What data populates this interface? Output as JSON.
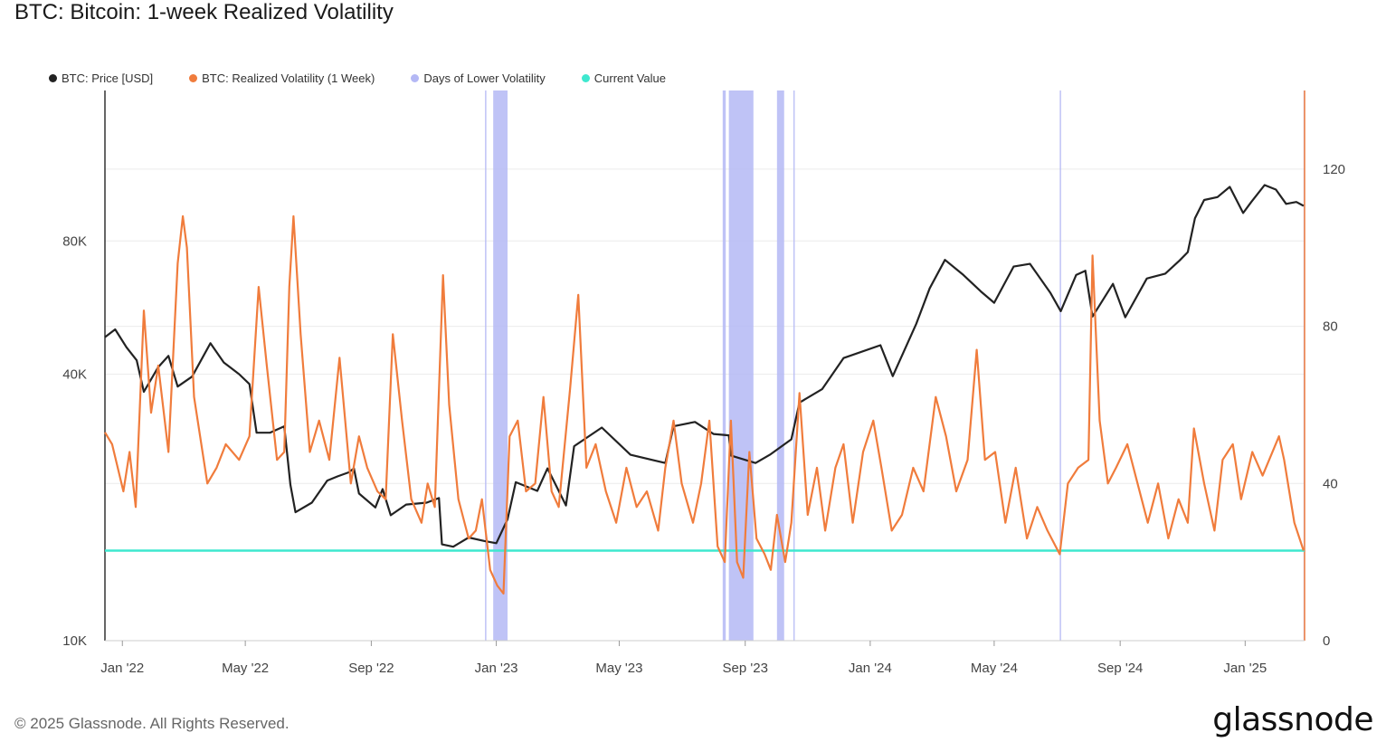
{
  "title": "BTC: Bitcoin: 1-week Realized Volatility",
  "legend": [
    {
      "label": "BTC: Price [USD]",
      "color": "#222222"
    },
    {
      "label": "BTC: Realized Volatility (1 Week)",
      "color": "#f07c3c"
    },
    {
      "label": "Days of Lower Volatility",
      "color": "#b4b8f5"
    },
    {
      "label": "Current Value",
      "color": "#3ee8cf"
    }
  ],
  "footer": {
    "copyright": "© 2025 Glassnode. All Rights Reserved.",
    "brand": "glassnode"
  },
  "chart_data": {
    "type": "line",
    "title": "BTC: Bitcoin: 1-week Realized Volatility",
    "x_range": [
      "2021-12-15",
      "2025-02-28"
    ],
    "x_ticks": [
      {
        "date": "2022-01-01",
        "label": "Jan '22"
      },
      {
        "date": "2022-05-01",
        "label": "May '22"
      },
      {
        "date": "2022-09-01",
        "label": "Sep '22"
      },
      {
        "date": "2023-01-01",
        "label": "Jan '23"
      },
      {
        "date": "2023-05-01",
        "label": "May '23"
      },
      {
        "date": "2023-09-01",
        "label": "Sep '23"
      },
      {
        "date": "2024-01-01",
        "label": "Jan '24"
      },
      {
        "date": "2024-05-01",
        "label": "May '24"
      },
      {
        "date": "2024-09-01",
        "label": "Sep '24"
      },
      {
        "date": "2025-01-01",
        "label": "Jan '25"
      }
    ],
    "y_left": {
      "scale": "log",
      "ticks": [
        {
          "value": 10000,
          "label": "10K"
        },
        {
          "value": 40000,
          "label": "40K"
        },
        {
          "value": 80000,
          "label": "80K"
        }
      ],
      "range": [
        10000,
        175000
      ]
    },
    "y_right": {
      "scale": "linear",
      "ticks": [
        {
          "value": 0,
          "label": "0"
        },
        {
          "value": 40,
          "label": "40"
        },
        {
          "value": 80,
          "label": "80"
        },
        {
          "value": 120,
          "label": "120"
        }
      ],
      "range": [
        0,
        140
      ]
    },
    "current_value": 22.9,
    "series": [
      {
        "name": "BTC: Price [USD]",
        "axis": "left",
        "color": "#222222",
        "points": [
          [
            "2021-12-15",
            48500
          ],
          [
            "2021-12-25",
            50500
          ],
          [
            "2022-01-05",
            46000
          ],
          [
            "2022-01-15",
            43000
          ],
          [
            "2022-01-22",
            36500
          ],
          [
            "2022-02-05",
            41500
          ],
          [
            "2022-02-15",
            44000
          ],
          [
            "2022-02-24",
            37500
          ],
          [
            "2022-03-10",
            39500
          ],
          [
            "2022-03-28",
            47000
          ],
          [
            "2022-04-10",
            42500
          ],
          [
            "2022-04-25",
            40000
          ],
          [
            "2022-05-05",
            38000
          ],
          [
            "2022-05-12",
            29500
          ],
          [
            "2022-05-25",
            29500
          ],
          [
            "2022-06-08",
            30500
          ],
          [
            "2022-06-14",
            22500
          ],
          [
            "2022-06-19",
            19500
          ],
          [
            "2022-07-05",
            20500
          ],
          [
            "2022-07-20",
            23000
          ],
          [
            "2022-07-30",
            23500
          ],
          [
            "2022-08-10",
            24000
          ],
          [
            "2022-08-15",
            24500
          ],
          [
            "2022-08-20",
            21500
          ],
          [
            "2022-09-05",
            20000
          ],
          [
            "2022-09-12",
            22000
          ],
          [
            "2022-09-20",
            19200
          ],
          [
            "2022-10-05",
            20300
          ],
          [
            "2022-10-25",
            20500
          ],
          [
            "2022-11-06",
            21000
          ],
          [
            "2022-11-09",
            16500
          ],
          [
            "2022-11-20",
            16300
          ],
          [
            "2022-12-05",
            17100
          ],
          [
            "2022-12-20",
            16800
          ],
          [
            "2023-01-01",
            16600
          ],
          [
            "2023-01-12",
            18800
          ],
          [
            "2023-01-20",
            22800
          ],
          [
            "2023-02-10",
            21800
          ],
          [
            "2023-02-20",
            24500
          ],
          [
            "2023-03-10",
            20200
          ],
          [
            "2023-03-18",
            27500
          ],
          [
            "2023-04-14",
            30300
          ],
          [
            "2023-05-12",
            26300
          ],
          [
            "2023-06-15",
            25200
          ],
          [
            "2023-06-23",
            30500
          ],
          [
            "2023-07-14",
            31200
          ],
          [
            "2023-08-01",
            29300
          ],
          [
            "2023-08-16",
            29100
          ],
          [
            "2023-08-18",
            26200
          ],
          [
            "2023-09-11",
            25200
          ],
          [
            "2023-09-25",
            26300
          ],
          [
            "2023-10-16",
            28500
          ],
          [
            "2023-10-24",
            34500
          ],
          [
            "2023-11-15",
            37000
          ],
          [
            "2023-12-06",
            43500
          ],
          [
            "2024-01-11",
            46500
          ],
          [
            "2024-01-23",
            39600
          ],
          [
            "2024-02-15",
            52000
          ],
          [
            "2024-02-28",
            62500
          ],
          [
            "2024-03-14",
            72500
          ],
          [
            "2024-04-01",
            67000
          ],
          [
            "2024-04-18",
            61500
          ],
          [
            "2024-05-01",
            58000
          ],
          [
            "2024-05-20",
            70000
          ],
          [
            "2024-06-05",
            71000
          ],
          [
            "2024-06-25",
            61000
          ],
          [
            "2024-07-05",
            55500
          ],
          [
            "2024-07-20",
            67000
          ],
          [
            "2024-07-29",
            68500
          ],
          [
            "2024-08-05",
            54000
          ],
          [
            "2024-08-25",
            64000
          ],
          [
            "2024-09-06",
            53800
          ],
          [
            "2024-09-27",
            65800
          ],
          [
            "2024-10-15",
            67500
          ],
          [
            "2024-10-29",
            72300
          ],
          [
            "2024-11-06",
            75500
          ],
          [
            "2024-11-13",
            90000
          ],
          [
            "2024-11-22",
            99000
          ],
          [
            "2024-12-05",
            100500
          ],
          [
            "2024-12-17",
            106000
          ],
          [
            "2024-12-30",
            92500
          ],
          [
            "2025-01-07",
            98000
          ],
          [
            "2025-01-20",
            107000
          ],
          [
            "2025-01-31",
            104500
          ],
          [
            "2025-02-10",
            97000
          ],
          [
            "2025-02-20",
            98000
          ],
          [
            "2025-02-27",
            96000
          ]
        ]
      },
      {
        "name": "BTC: Realized Volatility (1 Week)",
        "axis": "right",
        "color": "#f07c3c",
        "points": [
          [
            "2021-12-15",
            53
          ],
          [
            "2021-12-22",
            50
          ],
          [
            "2022-01-02",
            38
          ],
          [
            "2022-01-08",
            48
          ],
          [
            "2022-01-14",
            34
          ],
          [
            "2022-01-22",
            84
          ],
          [
            "2022-01-29",
            58
          ],
          [
            "2022-02-05",
            70
          ],
          [
            "2022-02-15",
            48
          ],
          [
            "2022-02-24",
            96
          ],
          [
            "2022-03-01",
            108
          ],
          [
            "2022-03-05",
            100
          ],
          [
            "2022-03-12",
            62
          ],
          [
            "2022-03-25",
            40
          ],
          [
            "2022-04-03",
            44
          ],
          [
            "2022-04-12",
            50
          ],
          [
            "2022-04-25",
            46
          ],
          [
            "2022-05-05",
            52
          ],
          [
            "2022-05-14",
            90
          ],
          [
            "2022-05-22",
            70
          ],
          [
            "2022-06-01",
            46
          ],
          [
            "2022-06-08",
            48
          ],
          [
            "2022-06-13",
            90
          ],
          [
            "2022-06-17",
            108
          ],
          [
            "2022-06-24",
            78
          ],
          [
            "2022-07-03",
            48
          ],
          [
            "2022-07-12",
            56
          ],
          [
            "2022-07-22",
            46
          ],
          [
            "2022-08-01",
            72
          ],
          [
            "2022-08-12",
            40
          ],
          [
            "2022-08-20",
            52
          ],
          [
            "2022-08-28",
            44
          ],
          [
            "2022-09-07",
            38
          ],
          [
            "2022-09-15",
            36
          ],
          [
            "2022-09-22",
            78
          ],
          [
            "2022-10-01",
            56
          ],
          [
            "2022-10-10",
            36
          ],
          [
            "2022-10-20",
            30
          ],
          [
            "2022-10-26",
            40
          ],
          [
            "2022-11-02",
            34
          ],
          [
            "2022-11-10",
            93
          ],
          [
            "2022-11-16",
            60
          ],
          [
            "2022-11-25",
            36
          ],
          [
            "2022-12-05",
            26
          ],
          [
            "2022-12-12",
            28
          ],
          [
            "2022-12-18",
            36
          ],
          [
            "2022-12-26",
            18
          ],
          [
            "2023-01-02",
            14
          ],
          [
            "2023-01-08",
            12
          ],
          [
            "2023-01-14",
            52
          ],
          [
            "2023-01-22",
            56
          ],
          [
            "2023-01-30",
            38
          ],
          [
            "2023-02-08",
            40
          ],
          [
            "2023-02-16",
            62
          ],
          [
            "2023-02-24",
            38
          ],
          [
            "2023-03-03",
            34
          ],
          [
            "2023-03-14",
            64
          ],
          [
            "2023-03-22",
            88
          ],
          [
            "2023-03-30",
            44
          ],
          [
            "2023-04-08",
            50
          ],
          [
            "2023-04-18",
            38
          ],
          [
            "2023-04-28",
            30
          ],
          [
            "2023-05-08",
            44
          ],
          [
            "2023-05-18",
            34
          ],
          [
            "2023-05-28",
            38
          ],
          [
            "2023-06-08",
            28
          ],
          [
            "2023-06-15",
            44
          ],
          [
            "2023-06-23",
            56
          ],
          [
            "2023-07-01",
            40
          ],
          [
            "2023-07-12",
            30
          ],
          [
            "2023-07-20",
            40
          ],
          [
            "2023-07-28",
            56
          ],
          [
            "2023-08-05",
            24
          ],
          [
            "2023-08-12",
            20
          ],
          [
            "2023-08-18",
            56
          ],
          [
            "2023-08-24",
            20
          ],
          [
            "2023-08-30",
            16
          ],
          [
            "2023-09-05",
            48
          ],
          [
            "2023-09-12",
            26
          ],
          [
            "2023-09-20",
            22
          ],
          [
            "2023-09-26",
            18
          ],
          [
            "2023-10-02",
            32
          ],
          [
            "2023-10-10",
            20
          ],
          [
            "2023-10-16",
            30
          ],
          [
            "2023-10-24",
            63
          ],
          [
            "2023-11-01",
            32
          ],
          [
            "2023-11-10",
            44
          ],
          [
            "2023-11-18",
            28
          ],
          [
            "2023-11-28",
            44
          ],
          [
            "2023-12-06",
            50
          ],
          [
            "2023-12-15",
            30
          ],
          [
            "2023-12-25",
            48
          ],
          [
            "2024-01-04",
            56
          ],
          [
            "2024-01-12",
            44
          ],
          [
            "2024-01-22",
            28
          ],
          [
            "2024-02-01",
            32
          ],
          [
            "2024-02-12",
            44
          ],
          [
            "2024-02-22",
            38
          ],
          [
            "2024-03-05",
            62
          ],
          [
            "2024-03-15",
            52
          ],
          [
            "2024-03-25",
            38
          ],
          [
            "2024-04-05",
            46
          ],
          [
            "2024-04-14",
            74
          ],
          [
            "2024-04-22",
            46
          ],
          [
            "2024-05-02",
            48
          ],
          [
            "2024-05-12",
            30
          ],
          [
            "2024-05-22",
            44
          ],
          [
            "2024-06-02",
            26
          ],
          [
            "2024-06-12",
            34
          ],
          [
            "2024-06-22",
            28
          ],
          [
            "2024-07-04",
            22
          ],
          [
            "2024-07-12",
            40
          ],
          [
            "2024-07-22",
            44
          ],
          [
            "2024-08-01",
            46
          ],
          [
            "2024-08-05",
            98
          ],
          [
            "2024-08-12",
            56
          ],
          [
            "2024-08-20",
            40
          ],
          [
            "2024-08-28",
            44
          ],
          [
            "2024-09-08",
            50
          ],
          [
            "2024-09-18",
            40
          ],
          [
            "2024-09-28",
            30
          ],
          [
            "2024-10-08",
            40
          ],
          [
            "2024-10-18",
            26
          ],
          [
            "2024-10-28",
            36
          ],
          [
            "2024-11-06",
            30
          ],
          [
            "2024-11-12",
            54
          ],
          [
            "2024-11-22",
            40
          ],
          [
            "2024-12-02",
            28
          ],
          [
            "2024-12-10",
            46
          ],
          [
            "2024-12-20",
            50
          ],
          [
            "2024-12-28",
            36
          ],
          [
            "2025-01-08",
            48
          ],
          [
            "2025-01-18",
            42
          ],
          [
            "2025-02-03",
            52
          ],
          [
            "2025-02-08",
            46
          ],
          [
            "2025-02-18",
            30
          ],
          [
            "2025-02-27",
            22.9
          ]
        ]
      },
      {
        "name": "Days of Lower Volatility",
        "color": "#b4b8f5",
        "ranges": [
          [
            "2022-12-21",
            "2022-12-22"
          ],
          [
            "2022-12-29",
            "2023-01-12"
          ],
          [
            "2023-08-10",
            "2023-08-13"
          ],
          [
            "2023-08-16",
            "2023-09-09"
          ],
          [
            "2023-10-02",
            "2023-10-09"
          ],
          [
            "2023-10-18",
            "2023-10-19"
          ],
          [
            "2024-07-04",
            "2024-07-05"
          ],
          [
            "2025-02-27",
            "2025-02-28"
          ]
        ]
      }
    ]
  }
}
